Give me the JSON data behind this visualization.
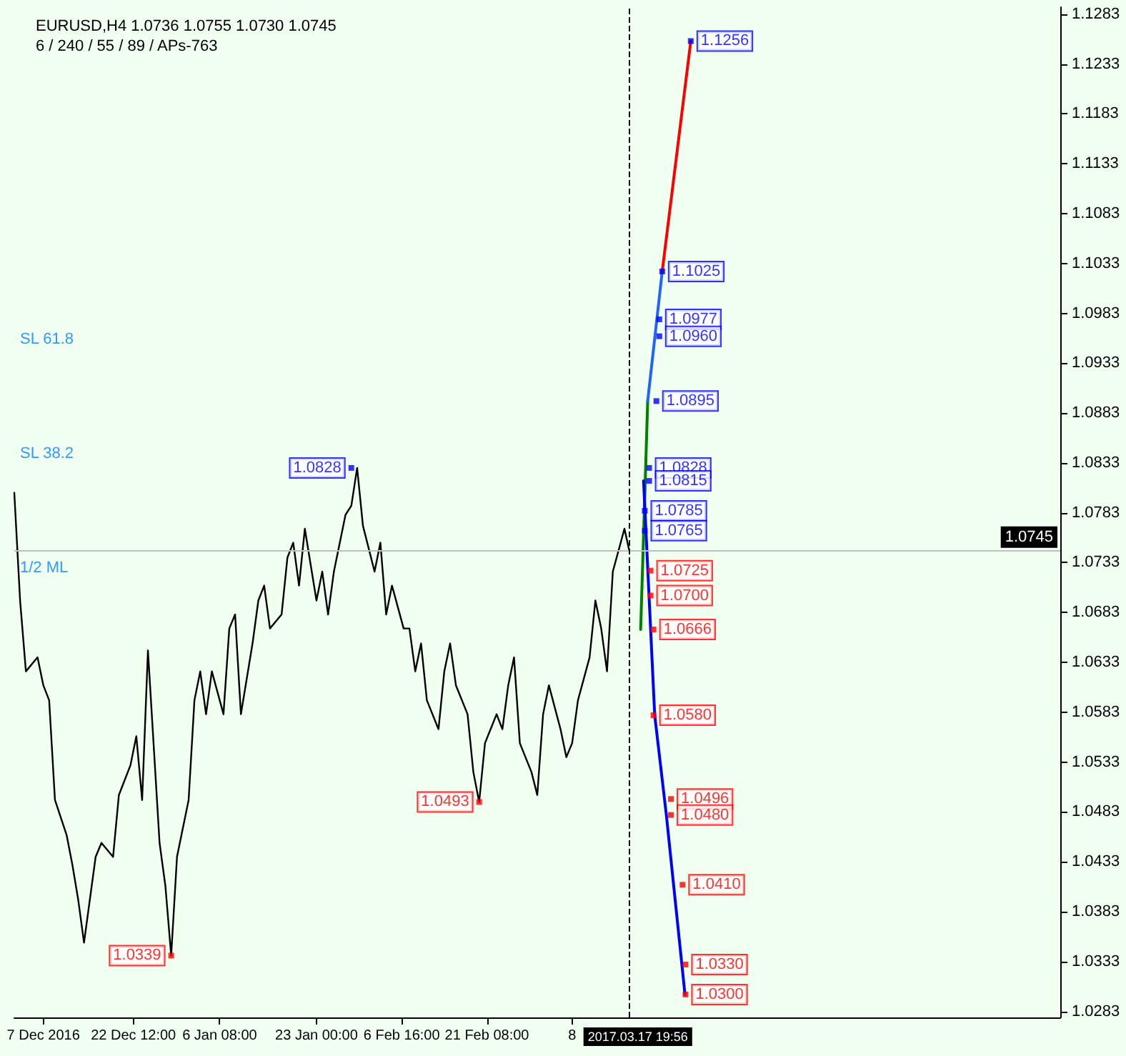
{
  "chart_data": {
    "type": "line",
    "title": "EURUSD,H4 1.0736 1.0755 1.0730 1.0745",
    "subtitle": "6 / 240 / 55 / 89 / APs-763",
    "xlim": [
      "2016-12-02",
      "2017-05-31"
    ],
    "xticks": [
      {
        "value": "2016-12-07",
        "label": "7 Dec 2016"
      },
      {
        "value": "2016-12-22T12:00",
        "label": "22 Dec 12:00"
      },
      {
        "value": "2017-01-06T08:00",
        "label": "6 Jan 08:00"
      },
      {
        "value": "2017-01-23T00:00",
        "label": "23 Jan 00:00"
      },
      {
        "value": "2017-02-06T16:00",
        "label": "6 Feb 16:00"
      },
      {
        "value": "2017-02-21T08:00",
        "label": "21 Feb 08:00"
      },
      {
        "value": "2017-03-08",
        "label": "8"
      }
    ],
    "ylim": [
      1.0277,
      1.129
    ],
    "yticks": [
      1.0283,
      1.0333,
      1.0383,
      1.0433,
      1.0483,
      1.0533,
      1.0583,
      1.0633,
      1.0683,
      1.0733,
      1.0783,
      1.0833,
      1.0883,
      1.0933,
      1.0983,
      1.1033,
      1.1083,
      1.1133,
      1.1183,
      1.1233,
      1.1283
    ],
    "grid": false,
    "line_style": "solid",
    "series": [
      {
        "color": "#000000",
        "x": [
          "2016-12-02",
          "2016-12-03",
          "2016-12-04",
          "2016-12-06",
          "2016-12-07",
          "2016-12-08",
          "2016-12-09",
          "2016-12-11",
          "2016-12-12",
          "2016-12-13",
          "2016-12-14",
          "2016-12-16",
          "2016-12-17",
          "2016-12-18",
          "2016-12-19",
          "2016-12-20",
          "2016-12-22",
          "2016-12-23",
          "2016-12-24",
          "2016-12-25",
          "2016-12-27",
          "2016-12-28",
          "2016-12-29",
          "2016-12-30",
          "2017-01-01",
          "2017-01-02",
          "2017-01-03",
          "2017-01-04",
          "2017-01-05",
          "2017-01-07",
          "2017-01-08",
          "2017-01-09",
          "2017-01-10",
          "2017-01-12",
          "2017-01-13",
          "2017-01-14",
          "2017-01-15",
          "2017-01-17",
          "2017-01-18",
          "2017-01-19",
          "2017-01-20",
          "2017-01-21",
          "2017-01-23",
          "2017-01-24",
          "2017-01-25",
          "2017-01-26",
          "2017-01-28",
          "2017-01-29",
          "2017-01-30",
          "2017-01-31",
          "2017-02-02",
          "2017-02-03",
          "2017-02-04",
          "2017-02-05",
          "2017-02-07",
          "2017-02-08",
          "2017-02-09",
          "2017-02-10",
          "2017-02-11",
          "2017-02-13",
          "2017-02-14",
          "2017-02-15",
          "2017-02-16",
          "2017-02-18",
          "2017-02-19",
          "2017-02-20",
          "2017-02-21",
          "2017-02-23",
          "2017-02-24",
          "2017-02-25",
          "2017-02-26",
          "2017-02-27",
          "2017-03-01",
          "2017-03-02",
          "2017-03-03",
          "2017-03-04",
          "2017-03-06",
          "2017-03-07",
          "2017-03-08",
          "2017-03-09",
          "2017-03-11",
          "2017-03-12",
          "2017-03-13",
          "2017-03-14",
          "2017-03-15",
          "2017-03-17",
          "2017-03-17T19:56"
        ],
        "values": [
          1.0803,
          1.0695,
          1.0624,
          1.0638,
          1.061,
          1.0595,
          1.0495,
          1.046,
          1.043,
          1.0395,
          1.0352,
          1.0438,
          1.0452,
          1.0445,
          1.0438,
          1.05,
          1.053,
          1.0559,
          1.0495,
          1.0645,
          1.0452,
          1.0409,
          1.0339,
          1.0438,
          1.0495,
          1.0595,
          1.0624,
          1.0581,
          1.0624,
          1.0581,
          1.0667,
          1.0681,
          1.0581,
          1.0652,
          1.0695,
          1.071,
          1.0667,
          1.0681,
          1.0738,
          1.0753,
          1.071,
          1.0767,
          1.0695,
          1.0724,
          1.0681,
          1.0724,
          1.0781,
          1.079,
          1.0828,
          1.077,
          1.0724,
          1.0753,
          1.0681,
          1.071,
          1.0667,
          1.0667,
          1.0624,
          1.0652,
          1.0595,
          1.0566,
          1.0624,
          1.0652,
          1.061,
          1.0581,
          1.0523,
          1.0493,
          1.0552,
          1.0581,
          1.0566,
          1.061,
          1.0638,
          1.0552,
          1.0523,
          1.05,
          1.0581,
          1.061,
          1.0566,
          1.0538,
          1.0552,
          1.0595,
          1.0638,
          1.0695,
          1.0667,
          1.0624,
          1.0724,
          1.0767,
          1.0745
        ]
      },
      {
        "color": "#008000",
        "x": [
          "2017-03-19T19:00",
          "2017-03-21"
        ],
        "values": [
          1.0666,
          1.0895
        ]
      },
      {
        "color": "#1e64ff",
        "x": [
          "2017-03-21",
          "2017-03-23T12:00"
        ],
        "values": [
          1.0895,
          1.1025
        ]
      },
      {
        "color": "#ff0000",
        "x": [
          "2017-03-23T12:00",
          "2017-03-28T10:00"
        ],
        "values": [
          1.1025,
          1.1256
        ]
      },
      {
        "color": "#0000ff",
        "x": [
          "2017-03-20T07:00",
          "2017-03-22T05:00",
          "2017-03-24T05:00",
          "2017-03-27T10:00"
        ],
        "values": [
          1.0815,
          1.058,
          1.048,
          1.03
        ]
      },
      {
        "type": "scatter",
        "marker": "square",
        "color": "#0000ff",
        "x": [
          "2017-03-28T10:00",
          "2017-03-23T12:00",
          "2017-03-23",
          "2017-03-23",
          "2017-03-22T12:00",
          "2017-03-21T06:00",
          "2017-03-21T06:00",
          "2017-03-20T12:00",
          "2017-03-20T12:00",
          "2017-01-29"
        ],
        "values": [
          1.1256,
          1.1025,
          1.0977,
          1.096,
          1.0895,
          1.0828,
          1.0815,
          1.0785,
          1.0765,
          1.0828
        ],
        "value_labels": [
          "1.1256",
          "1.1025",
          "1.0977",
          "1.0960",
          "1.0895",
          "1.0828",
          "1.0815",
          "1.0785",
          "1.0765",
          "1.0828"
        ]
      },
      {
        "type": "scatter",
        "marker": "square",
        "color": "#ff0000",
        "x": [
          "2017-03-21T12:00",
          "2017-03-21T12:00",
          "2017-03-22",
          "2017-03-22",
          "2017-03-25",
          "2017-03-25",
          "2017-03-27",
          "2017-03-27T12:00",
          "2017-03-27T12:00",
          "2017-02-20",
          "2016-12-29"
        ],
        "values": [
          1.0725,
          1.07,
          1.0666,
          1.058,
          1.0496,
          1.048,
          1.041,
          1.033,
          1.03,
          1.0493,
          1.0339
        ],
        "value_labels": [
          "1.0725",
          "1.0700",
          "1.0666",
          "1.0580",
          "1.0496",
          "1.0480",
          "1.0410",
          "1.0330",
          "1.0300",
          "1.0493",
          "1.0339"
        ]
      }
    ],
    "ref_lines": [
      {
        "axis": "y",
        "value": 1.0745,
        "label": "1.0745",
        "color": "#c0c0c0",
        "line_style": "solid"
      },
      {
        "axis": "x",
        "value": "2017-03-17T19:56",
        "label": "2017.03.17 19:56",
        "color": "#000000",
        "line_style": "dashed"
      }
    ],
    "annotations": [
      "SL 61.8",
      "SL 38.2",
      "1/2 ML"
    ]
  }
}
